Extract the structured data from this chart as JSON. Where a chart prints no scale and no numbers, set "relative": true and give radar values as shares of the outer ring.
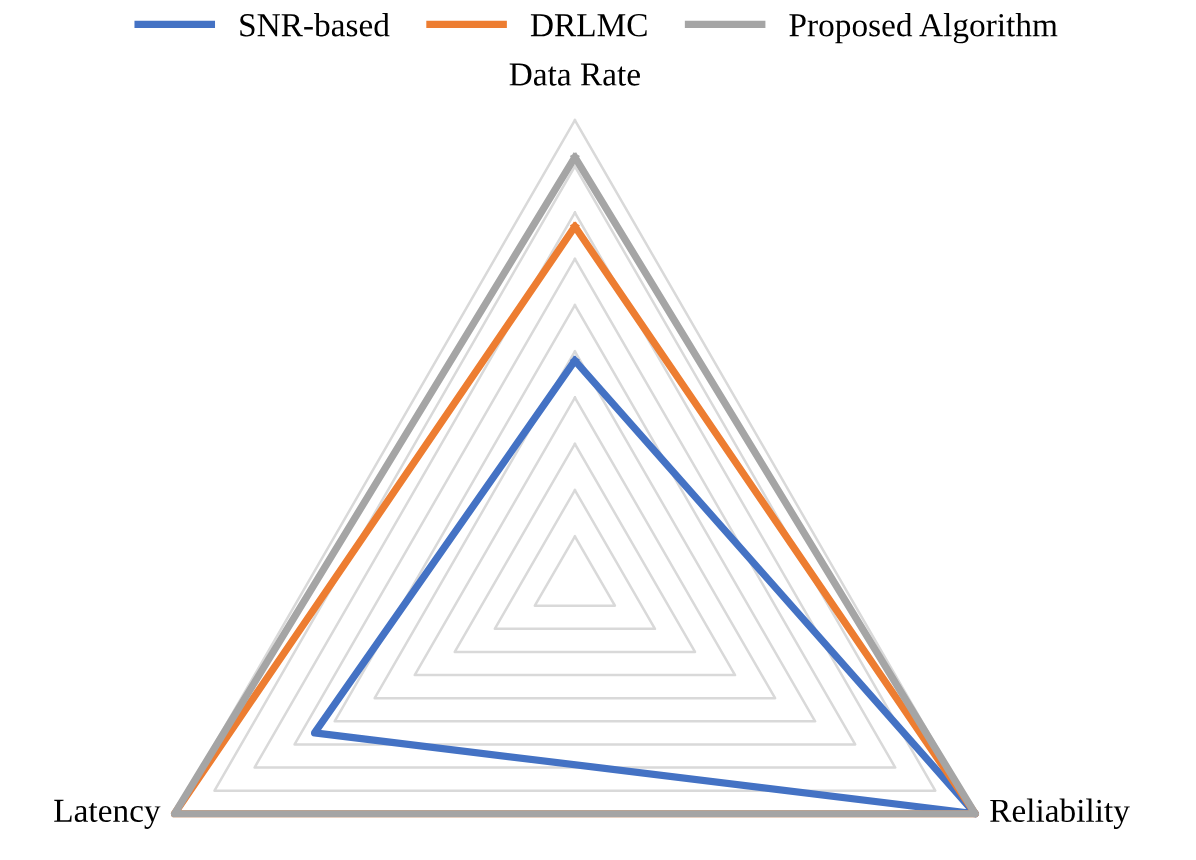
{
  "chart_data": {
    "type": "radar",
    "relative": true,
    "categories": [
      "Data Rate",
      "Reliability",
      "Latency"
    ],
    "series": [
      {
        "name": "SNR-based",
        "color": "#4472c4",
        "values": [
          0.48,
          1,
          0.65
        ]
      },
      {
        "name": "DRLMC",
        "color": "#ed7d31",
        "values": [
          0.77,
          1,
          1
        ]
      },
      {
        "name": "Proposed Algorithm",
        "color": "#a5a5a5",
        "values": [
          0.92,
          1,
          1
        ]
      }
    ],
    "grid": true,
    "legend": "top",
    "line_style": "solid",
    "marker": "none"
  }
}
